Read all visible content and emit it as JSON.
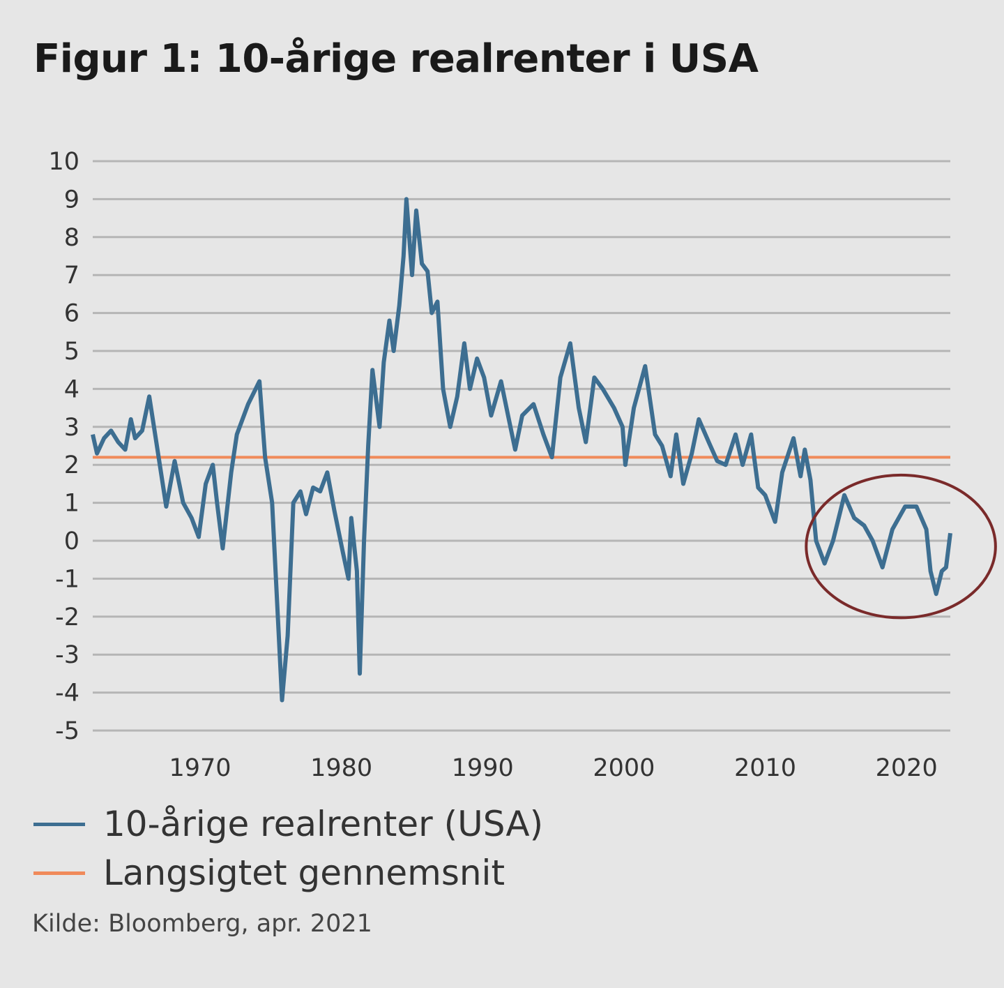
{
  "chart_data": {
    "type": "line",
    "title": "Figur 1: 10-årige realrenter i USA",
    "xlabel": "",
    "ylabel": "",
    "xlim": [
      1962.4,
      2023.1
    ],
    "ylim": [
      -5,
      10
    ],
    "x_ticks": [
      1970,
      1980,
      1990,
      2000,
      2010,
      2020
    ],
    "y_ticks": [
      10,
      9,
      8,
      7,
      6,
      5,
      4,
      3,
      2,
      1,
      0,
      -1,
      -2,
      -3,
      -4,
      -5
    ],
    "grid": "horizontal",
    "legend_position": "bottom-left",
    "series": [
      {
        "name": "10-årige realrenter (USA)",
        "color": "#3d6e91",
        "x": [
          1962.4,
          1962.7,
          1963.2,
          1963.7,
          1964.2,
          1964.7,
          1965.1,
          1965.4,
          1965.9,
          1966.4,
          1966.9,
          1967.6,
          1968.2,
          1968.8,
          1969.4,
          1969.9,
          1970.4,
          1970.9,
          1971.2,
          1971.6,
          1972.2,
          1972.6,
          1973.4,
          1973.8,
          1974.2,
          1974.6,
          1975.1,
          1975.5,
          1975.8,
          1976.2,
          1976.6,
          1977.1,
          1977.5,
          1978.0,
          1978.5,
          1979.0,
          1979.5,
          1980.1,
          1980.5,
          1980.7,
          1981.1,
          1981.3,
          1981.6,
          1981.9,
          1982.2,
          1982.7,
          1983.0,
          1983.4,
          1983.7,
          1984.1,
          1984.4,
          1984.6,
          1985.0,
          1985.3,
          1985.7,
          1986.1,
          1986.4,
          1986.8,
          1987.2,
          1987.7,
          1988.2,
          1988.7,
          1989.1,
          1989.6,
          1990.1,
          1990.6,
          1991.3,
          1991.8,
          1992.3,
          1992.8,
          1993.6,
          1994.3,
          1994.9,
          1995.5,
          1996.2,
          1996.8,
          1997.3,
          1997.9,
          1998.5,
          1999.3,
          1999.9,
          2000.1,
          2000.7,
          2001.5,
          2002.2,
          2002.7,
          2003.3,
          2003.7,
          2004.2,
          2004.8,
          2005.3,
          2006.0,
          2006.6,
          2007.2,
          2007.9,
          2008.4,
          2009.0,
          2009.5,
          2010.0,
          2010.7,
          2011.2,
          2012.0,
          2012.5,
          2012.8,
          2013.2,
          2013.6,
          2014.2,
          2014.8,
          2015.6,
          2016.3,
          2017.0,
          2017.6,
          2018.3,
          2019.0,
          2019.9,
          2020.7,
          2021.4,
          2021.7,
          2022.1,
          2022.5,
          2022.8,
          2023.1
        ],
        "values": [
          2.8,
          2.3,
          2.7,
          2.9,
          2.6,
          2.4,
          3.2,
          2.7,
          2.9,
          3.8,
          2.6,
          0.9,
          2.1,
          1.0,
          0.6,
          0.1,
          1.5,
          2.0,
          1.0,
          -0.2,
          1.8,
          2.8,
          3.6,
          3.9,
          4.2,
          2.2,
          1.0,
          -2.0,
          -4.2,
          -2.5,
          1.0,
          1.3,
          0.7,
          1.4,
          1.3,
          1.8,
          0.8,
          -0.3,
          -1.0,
          0.6,
          -0.8,
          -3.5,
          0.0,
          2.5,
          4.5,
          3.0,
          4.7,
          5.8,
          5.0,
          6.2,
          7.5,
          9.0,
          7.0,
          8.7,
          7.3,
          7.1,
          6.0,
          6.3,
          4.0,
          3.0,
          3.8,
          5.2,
          4.0,
          4.8,
          4.3,
          3.3,
          4.2,
          3.3,
          2.4,
          3.3,
          3.6,
          2.8,
          2.2,
          4.3,
          5.2,
          3.5,
          2.6,
          4.3,
          4.0,
          3.5,
          3.0,
          2.0,
          3.5,
          4.6,
          2.8,
          2.5,
          1.7,
          2.8,
          1.5,
          2.3,
          3.2,
          2.6,
          2.1,
          2.0,
          2.8,
          2.0,
          2.8,
          1.4,
          1.2,
          0.5,
          1.8,
          2.7,
          1.7,
          2.4,
          1.6,
          0.0,
          -0.6,
          0.0,
          1.2,
          0.6,
          0.4,
          0.0,
          -0.7,
          0.3,
          0.9,
          0.9,
          0.3,
          -0.8,
          -1.4,
          -0.8,
          -0.7,
          0.2
        ]
      },
      {
        "name": "Langsigtet gennemsnit",
        "color": "#f08a5a",
        "constant": 2.2
      }
    ],
    "annotations": [
      {
        "type": "ellipse",
        "center": [
          2019.6,
          -0.15
        ],
        "radius_years": 6.7,
        "radius_value": 1.88,
        "color": "#7a2a2a"
      }
    ],
    "source": "Kilde: Bloomberg, apr. 2021"
  }
}
